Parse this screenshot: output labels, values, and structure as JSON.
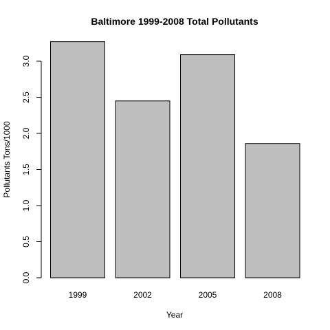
{
  "chart_data": {
    "type": "bar",
    "title": "Baltimore 1999-2008 Total Pollutants",
    "xlabel": "Year",
    "ylabel": "Pollutants Tons/1000",
    "categories": [
      "1999",
      "2002",
      "2005",
      "2008"
    ],
    "values": [
      3.27,
      2.45,
      3.09,
      1.86
    ],
    "yticks": [
      "0.0",
      "0.5",
      "1.0",
      "1.5",
      "2.0",
      "2.5",
      "3.0"
    ],
    "ylim": [
      0,
      3.4
    ],
    "grid": false,
    "legend": "none",
    "colors": {
      "bar_fill": "#bebebe",
      "bar_stroke": "#000000"
    }
  }
}
